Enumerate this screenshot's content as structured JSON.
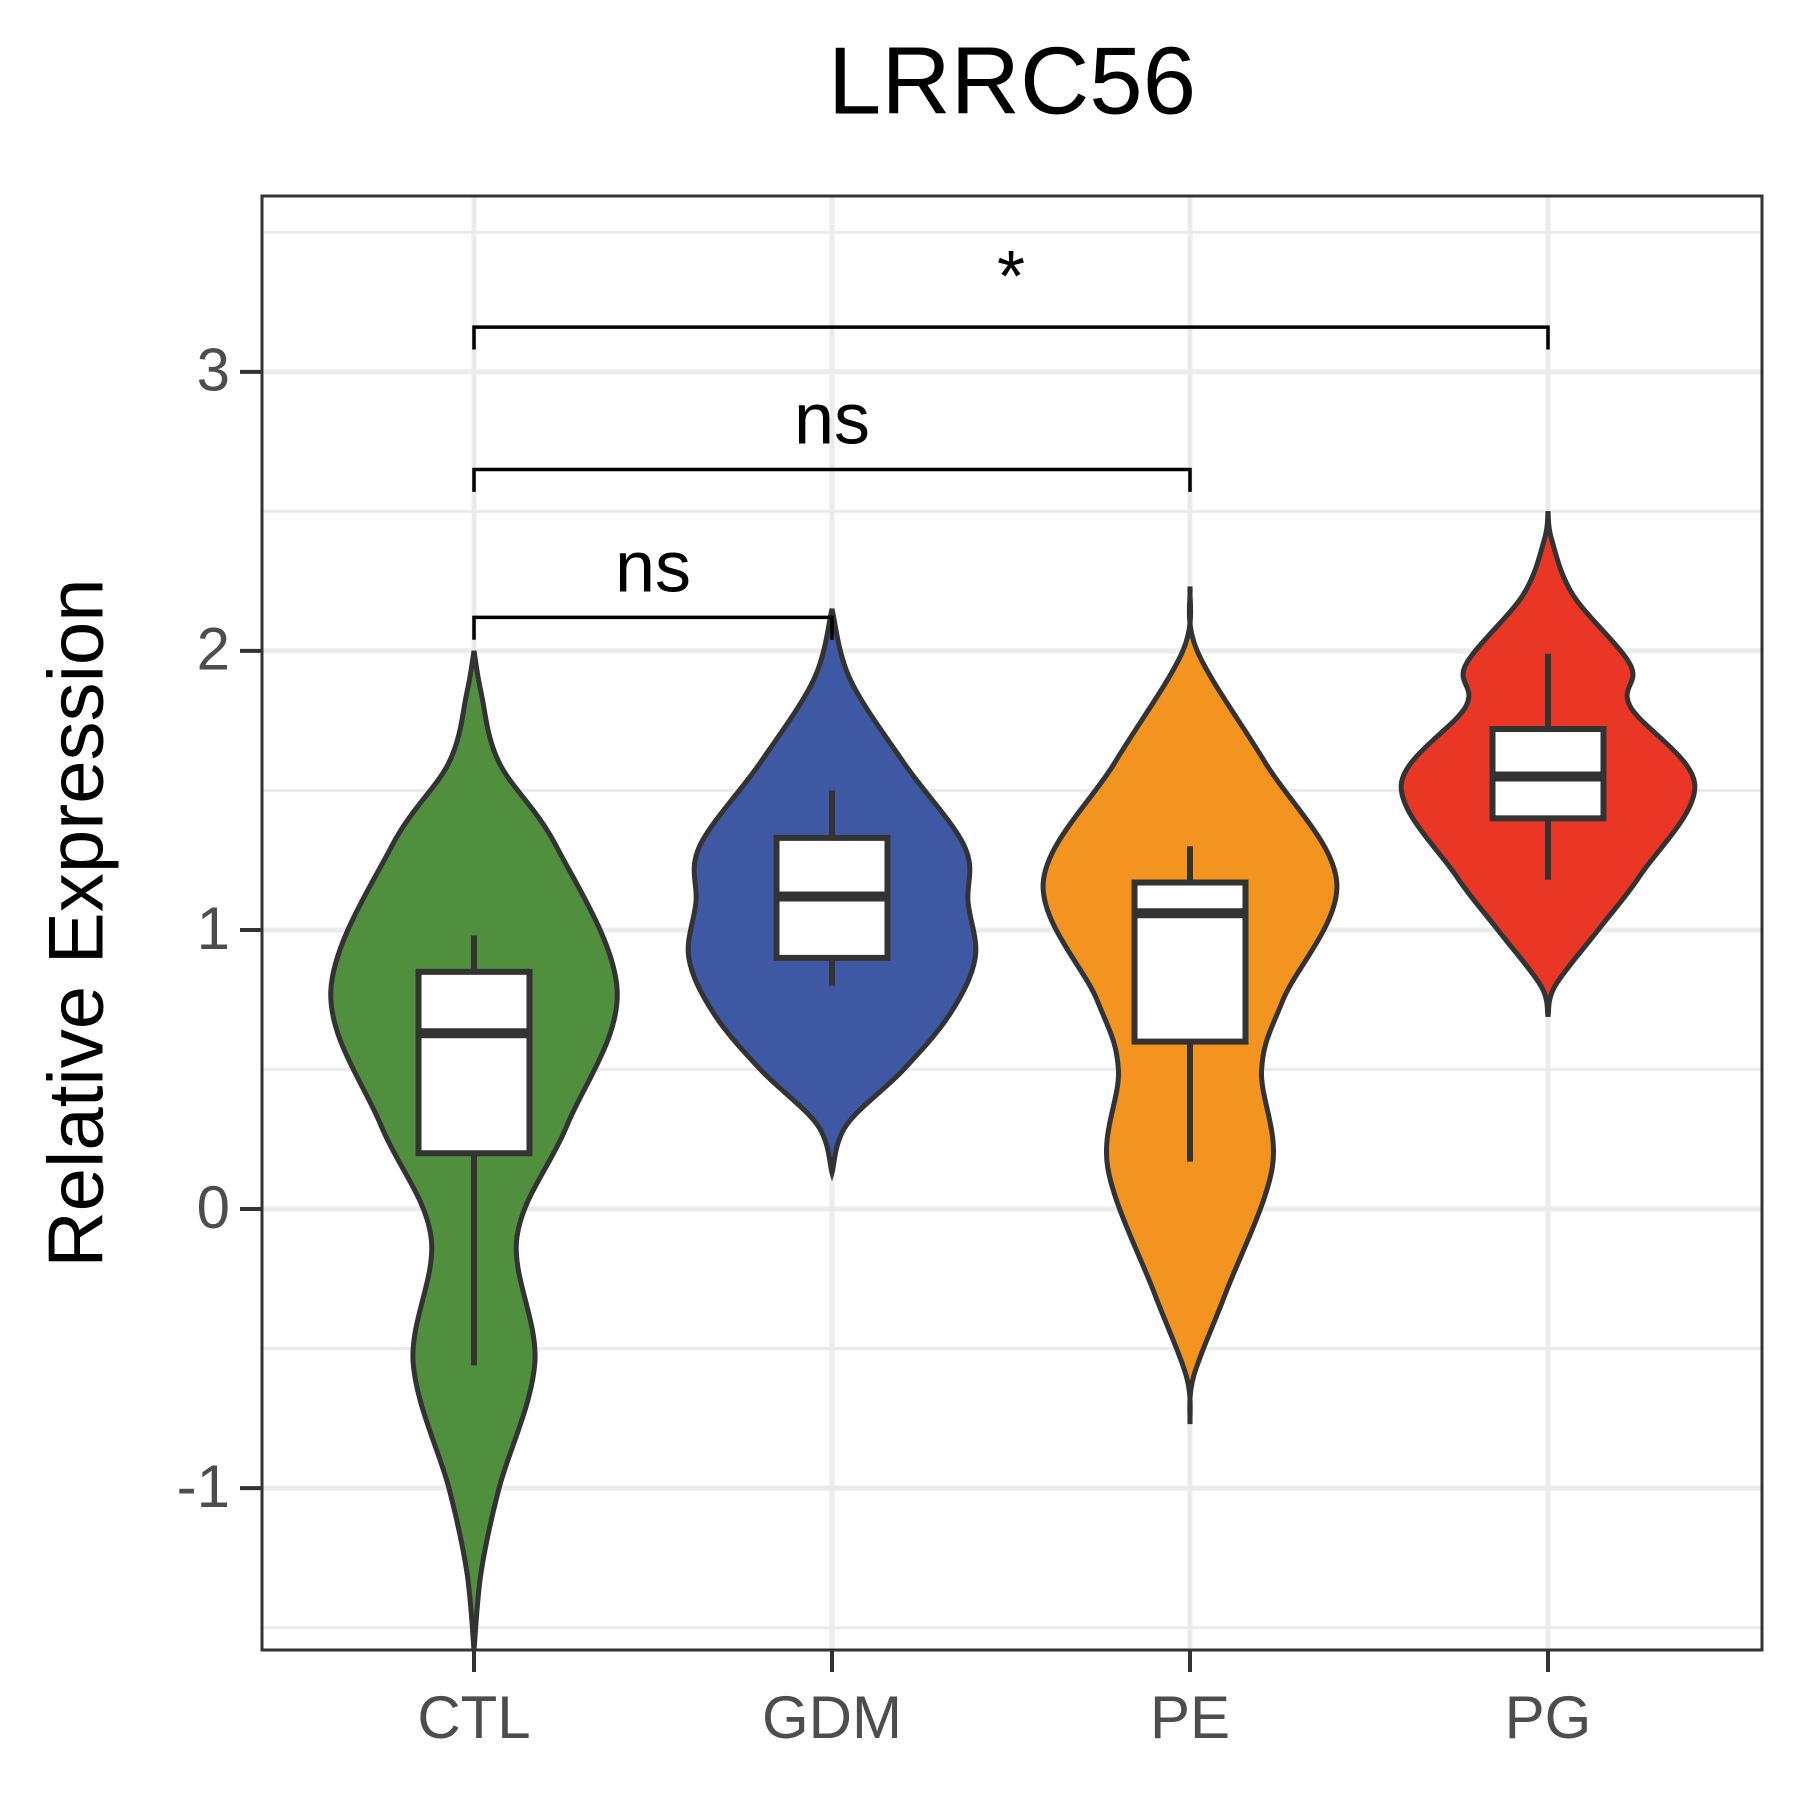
{
  "chart_data": {
    "type": "violin",
    "title": "LRRC56",
    "y_label": "Relative Expression",
    "categories": [
      "CTL",
      "GDM",
      "PE",
      "PG"
    ],
    "colors": [
      "#508f3e",
      "#3e58a4",
      "#f39420",
      "#ea3625"
    ],
    "ylim": [
      -1.58,
      3.63
    ],
    "yticks": [
      -1,
      0,
      1,
      2,
      3
    ],
    "minor_yticks": [
      -1.5,
      -0.5,
      0.5,
      1.5,
      2.5,
      3.5
    ],
    "grid": true,
    "violins": [
      {
        "y": [
          -1.58,
          -1.3,
          -1.0,
          -0.55,
          -0.1,
          0.3,
          0.78,
          1.3,
          1.6,
          1.85,
          2.0
        ],
        "width": [
          0,
          0.02,
          0.07,
          0.17,
          0.12,
          0.26,
          0.4,
          0.23,
          0.07,
          0.02,
          0
        ]
      },
      {
        "y": [
          0.13,
          0.3,
          0.5,
          0.7,
          0.9,
          1.1,
          1.3,
          1.6,
          1.9,
          2.15
        ],
        "width": [
          0,
          0.04,
          0.2,
          0.33,
          0.4,
          0.38,
          0.37,
          0.2,
          0.05,
          0
        ]
      },
      {
        "y": [
          -0.77,
          -0.6,
          -0.3,
          0.15,
          0.5,
          0.75,
          1.17,
          1.6,
          2.0,
          2.23
        ],
        "width": [
          0,
          0.01,
          0.1,
          0.23,
          0.2,
          0.26,
          0.41,
          0.21,
          0.02,
          0
        ]
      },
      {
        "y": [
          0.69,
          0.8,
          1.0,
          1.2,
          1.52,
          1.8,
          1.95,
          2.2,
          2.4,
          2.5
        ],
        "width": [
          0,
          0.02,
          0.14,
          0.26,
          0.41,
          0.23,
          0.23,
          0.07,
          0.01,
          0
        ]
      }
    ],
    "boxes": [
      {
        "min": -0.56,
        "q1": 0.2,
        "median": 0.63,
        "q3": 0.85,
        "max": 0.98
      },
      {
        "min": 0.8,
        "q1": 0.9,
        "median": 1.12,
        "q3": 1.33,
        "max": 1.5
      },
      {
        "min": 0.17,
        "q1": 0.6,
        "median": 1.06,
        "q3": 1.17,
        "max": 1.3
      },
      {
        "min": 1.18,
        "q1": 1.4,
        "median": 1.55,
        "q3": 1.72,
        "max": 1.99
      }
    ],
    "comparisons": [
      {
        "groups": [
          "CTL",
          "GDM"
        ],
        "y": 2.12,
        "label": "ns"
      },
      {
        "groups": [
          "CTL",
          "PE"
        ],
        "y": 2.65,
        "label": "ns"
      },
      {
        "groups": [
          "CTL",
          "PG"
        ],
        "y": 3.16,
        "label": "*"
      }
    ]
  }
}
